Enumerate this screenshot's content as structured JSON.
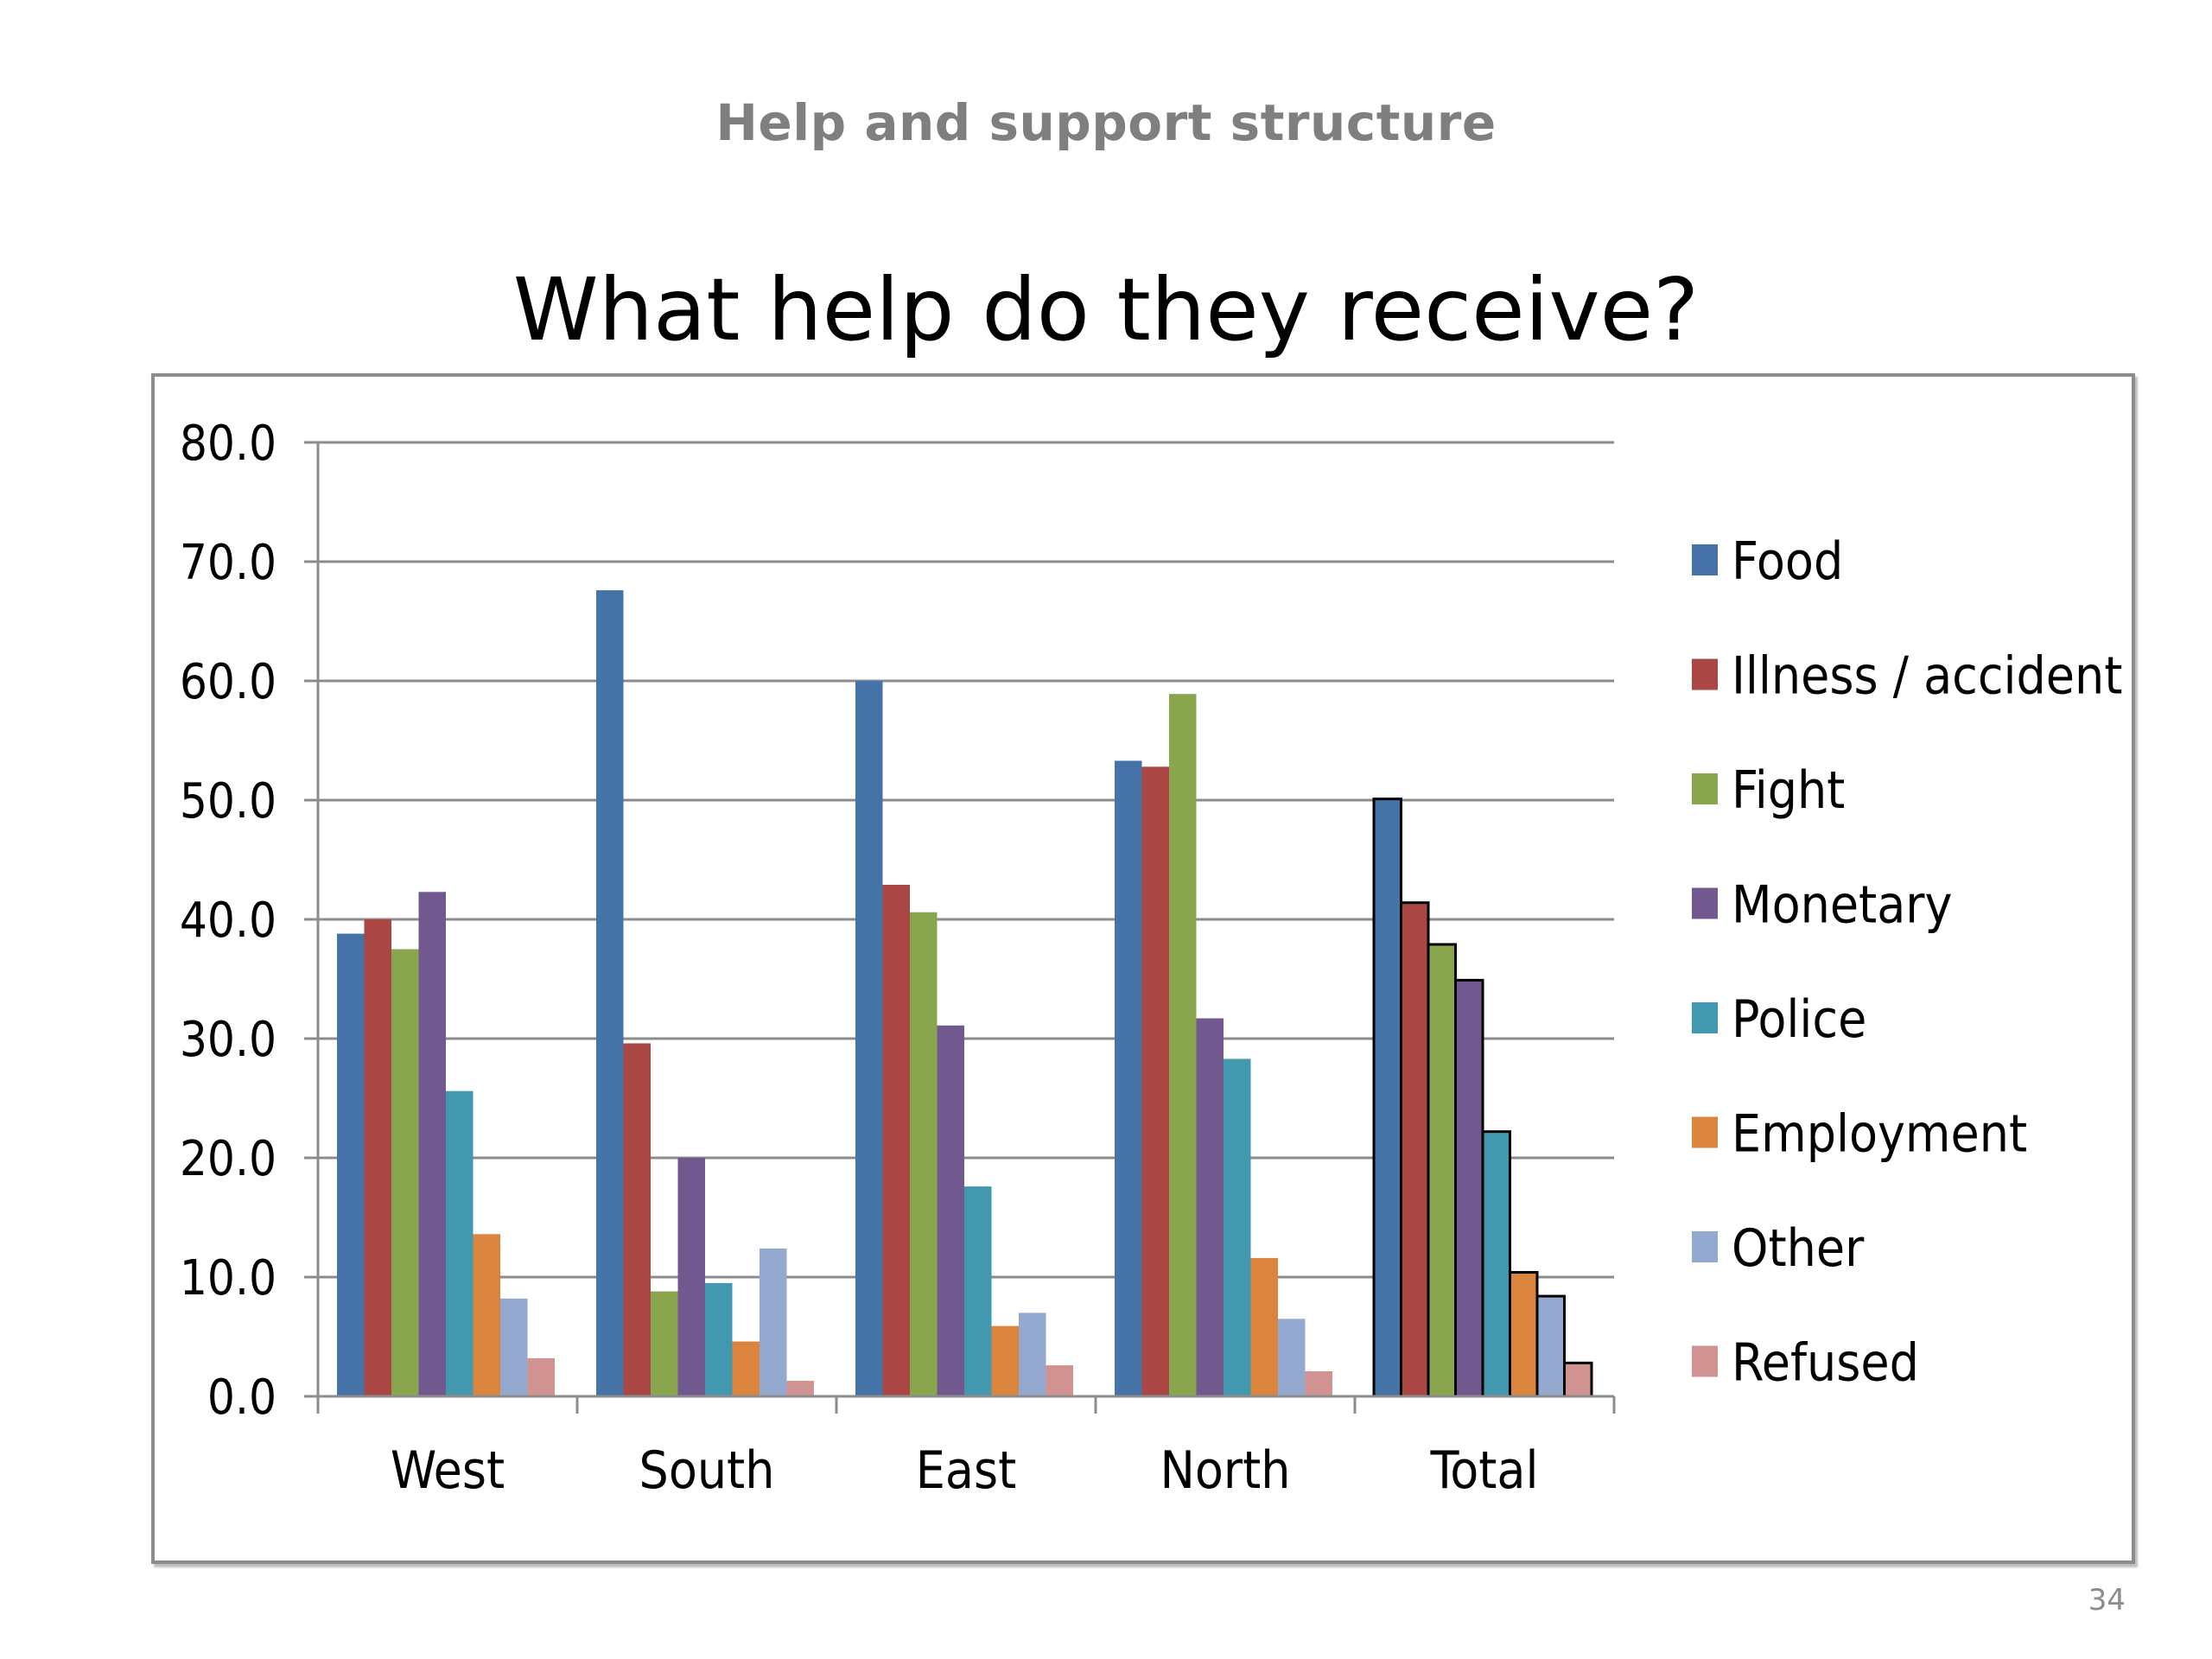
{
  "slide": {
    "header": "Help and support structure",
    "page_number": "34"
  },
  "chart_data": {
    "type": "bar",
    "title": "What help do they receive?",
    "xlabel": "",
    "ylabel": "",
    "ylim": [
      0,
      80
    ],
    "yticks": [
      "0.0",
      "10.0",
      "20.0",
      "30.0",
      "40.0",
      "50.0",
      "60.0",
      "70.0",
      "80.0"
    ],
    "grid": true,
    "legend_position": "right",
    "categories": [
      "West",
      "South",
      "East",
      "North",
      "Total"
    ],
    "series": [
      {
        "name": "Food",
        "color": "#4572a7",
        "values": [
          38.8,
          67.6,
          60.0,
          53.3,
          50.1
        ]
      },
      {
        "name": "Illness / accident",
        "color": "#aa4643",
        "values": [
          40.0,
          29.6,
          42.9,
          52.8,
          41.4
        ]
      },
      {
        "name": "Fight",
        "color": "#89a54e",
        "values": [
          37.5,
          8.8,
          40.6,
          58.9,
          37.9
        ]
      },
      {
        "name": "Monetary",
        "color": "#71588f",
        "values": [
          42.3,
          20.0,
          31.1,
          31.7,
          34.9
        ]
      },
      {
        "name": "Police",
        "color": "#4198af",
        "values": [
          25.6,
          9.5,
          17.6,
          28.3,
          22.2
        ]
      },
      {
        "name": "Employment",
        "color": "#db843d",
        "values": [
          13.6,
          4.6,
          5.9,
          11.6,
          10.4
        ]
      },
      {
        "name": "Other",
        "color": "#93a9cf",
        "values": [
          8.2,
          12.4,
          7.0,
          6.5,
          8.4
        ]
      },
      {
        "name": "Refused",
        "color": "#d19392",
        "values": [
          3.2,
          1.3,
          2.6,
          2.1,
          2.8
        ]
      }
    ],
    "outlined_category": "Total"
  }
}
